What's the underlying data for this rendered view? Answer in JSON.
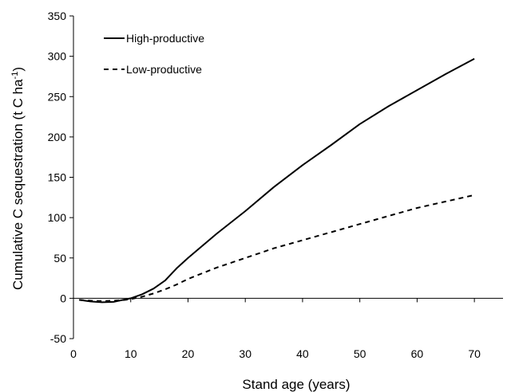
{
  "chart_data": {
    "type": "line",
    "xlabel": "Stand age (years)",
    "ylabel_main": "Cumulative C sequestration (t C ha",
    "ylabel_sup": "-1",
    "ylabel_close": ")",
    "xlim": [
      0,
      75
    ],
    "ylim": [
      -50,
      350
    ],
    "xticks": [
      0,
      10,
      20,
      30,
      40,
      50,
      60,
      70
    ],
    "yticks": [
      -50,
      0,
      50,
      100,
      150,
      200,
      250,
      300,
      350
    ],
    "grid": false,
    "legend_position": "top-left",
    "series": [
      {
        "name": "High-productive",
        "style": "solid",
        "color": "#000000",
        "x": [
          1,
          3,
          5,
          7,
          9,
          10,
          12,
          14,
          16,
          18,
          20,
          25,
          30,
          35,
          40,
          45,
          50,
          55,
          60,
          65,
          70
        ],
        "y": [
          -2,
          -4,
          -5,
          -4.5,
          -1.5,
          0,
          5,
          12,
          22,
          37,
          50,
          80,
          108,
          138,
          165,
          190,
          216,
          238,
          258,
          278,
          297
        ]
      },
      {
        "name": "Low-productive",
        "style": "dashed",
        "color": "#000000",
        "x": [
          1,
          3,
          5,
          7,
          9,
          10,
          12,
          14,
          16,
          18,
          20,
          25,
          30,
          35,
          40,
          45,
          50,
          55,
          60,
          65,
          70
        ],
        "y": [
          -2,
          -3,
          -3.5,
          -3,
          -2,
          -1,
          2,
          6,
          11,
          17,
          24,
          38,
          50,
          62,
          72,
          82,
          92,
          102,
          112,
          120,
          128
        ]
      }
    ]
  }
}
